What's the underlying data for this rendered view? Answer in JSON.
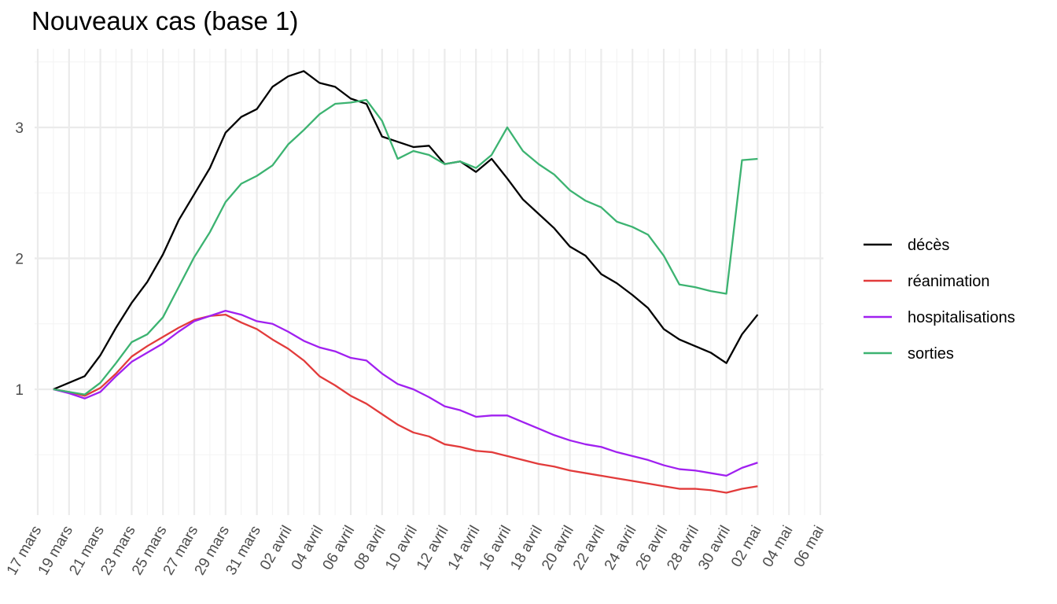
{
  "chart_data": {
    "type": "line",
    "title": "Nouveaux cas (base 1)",
    "xlabel": "",
    "ylabel": "",
    "x_start": "2020-03-18",
    "x_range": [
      "2020-03-17",
      "2020-05-06"
    ],
    "y_range": [
      0.2,
      3.6
    ],
    "x_ticks": [
      {
        "date": "2020-03-17",
        "label": "17 mars"
      },
      {
        "date": "2020-03-19",
        "label": "19 mars"
      },
      {
        "date": "2020-03-21",
        "label": "21 mars"
      },
      {
        "date": "2020-03-23",
        "label": "23 mars"
      },
      {
        "date": "2020-03-25",
        "label": "25 mars"
      },
      {
        "date": "2020-03-27",
        "label": "27 mars"
      },
      {
        "date": "2020-03-29",
        "label": "29 mars"
      },
      {
        "date": "2020-03-31",
        "label": "31 mars"
      },
      {
        "date": "2020-04-02",
        "label": "02 avril"
      },
      {
        "date": "2020-04-04",
        "label": "04 avril"
      },
      {
        "date": "2020-04-06",
        "label": "06 avril"
      },
      {
        "date": "2020-04-08",
        "label": "08 avril"
      },
      {
        "date": "2020-04-10",
        "label": "10 avril"
      },
      {
        "date": "2020-04-12",
        "label": "12 avril"
      },
      {
        "date": "2020-04-14",
        "label": "14 avril"
      },
      {
        "date": "2020-04-16",
        "label": "16 avril"
      },
      {
        "date": "2020-04-18",
        "label": "18 avril"
      },
      {
        "date": "2020-04-20",
        "label": "20 avril"
      },
      {
        "date": "2020-04-22",
        "label": "22 avril"
      },
      {
        "date": "2020-04-24",
        "label": "24 avril"
      },
      {
        "date": "2020-04-26",
        "label": "26 avril"
      },
      {
        "date": "2020-04-28",
        "label": "28 avril"
      },
      {
        "date": "2020-04-30",
        "label": "30 avril"
      },
      {
        "date": "2020-05-02",
        "label": "02 mai"
      },
      {
        "date": "2020-05-04",
        "label": "04 mai"
      },
      {
        "date": "2020-05-06",
        "label": "06 mai"
      }
    ],
    "y_ticks": [
      1,
      2,
      3
    ],
    "grid": true,
    "legend_position": "right",
    "series": [
      {
        "name": "décès",
        "color": "#000000",
        "values": [
          1.0,
          1.05,
          1.1,
          1.26,
          1.47,
          1.66,
          1.82,
          2.03,
          2.29,
          2.49,
          2.69,
          2.96,
          3.08,
          3.14,
          3.31,
          3.39,
          3.43,
          3.34,
          3.31,
          3.22,
          3.18,
          2.93,
          2.89,
          2.85,
          2.86,
          2.72,
          2.74,
          2.66,
          2.76,
          2.61,
          2.45,
          2.34,
          2.23,
          2.09,
          2.02,
          1.88,
          1.81,
          1.72,
          1.62,
          1.46,
          1.38,
          1.33,
          1.28,
          1.2,
          1.42,
          1.57
        ]
      },
      {
        "name": "réanimation",
        "color": "#e23b3b",
        "values": [
          1.0,
          0.98,
          0.95,
          1.01,
          1.12,
          1.25,
          1.33,
          1.4,
          1.47,
          1.53,
          1.56,
          1.57,
          1.51,
          1.46,
          1.38,
          1.31,
          1.22,
          1.1,
          1.03,
          0.95,
          0.89,
          0.81,
          0.73,
          0.67,
          0.64,
          0.58,
          0.56,
          0.53,
          0.52,
          0.49,
          0.46,
          0.43,
          0.41,
          0.38,
          0.36,
          0.34,
          0.32,
          0.3,
          0.28,
          0.26,
          0.24,
          0.24,
          0.23,
          0.21,
          0.24,
          0.26
        ]
      },
      {
        "name": "hospitalisations",
        "color": "#a020f0",
        "values": [
          1.0,
          0.97,
          0.93,
          0.98,
          1.1,
          1.21,
          1.28,
          1.35,
          1.44,
          1.52,
          1.56,
          1.6,
          1.57,
          1.52,
          1.5,
          1.44,
          1.37,
          1.32,
          1.29,
          1.24,
          1.22,
          1.12,
          1.04,
          1.0,
          0.94,
          0.87,
          0.84,
          0.79,
          0.8,
          0.8,
          0.75,
          0.7,
          0.65,
          0.61,
          0.58,
          0.56,
          0.52,
          0.49,
          0.46,
          0.42,
          0.39,
          0.38,
          0.36,
          0.34,
          0.4,
          0.44
        ]
      },
      {
        "name": "sorties",
        "color": "#3cb371",
        "values": [
          1.0,
          0.98,
          0.96,
          1.05,
          1.2,
          1.36,
          1.42,
          1.55,
          1.78,
          2.01,
          2.2,
          2.43,
          2.57,
          2.63,
          2.71,
          2.87,
          2.98,
          3.1,
          3.18,
          3.19,
          3.21,
          3.05,
          2.76,
          2.82,
          2.79,
          2.72,
          2.74,
          2.69,
          2.79,
          3.0,
          2.82,
          2.72,
          2.64,
          2.52,
          2.44,
          2.39,
          2.28,
          2.24,
          2.18,
          2.02,
          1.8,
          1.78,
          1.75,
          1.73,
          2.75,
          2.76
        ]
      }
    ]
  }
}
